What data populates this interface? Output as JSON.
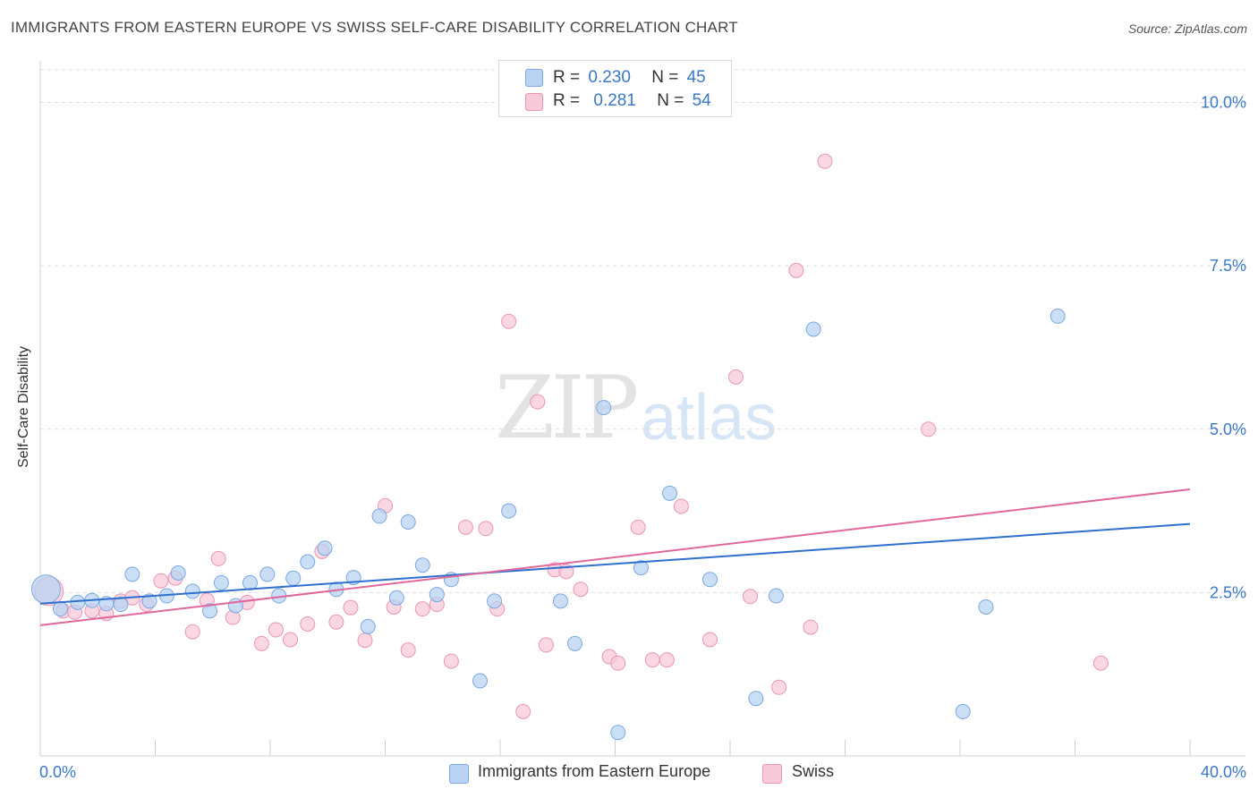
{
  "title": "IMMIGRANTS FROM EASTERN EUROPE VS SWISS SELF-CARE DISABILITY CORRELATION CHART",
  "source": "Source: ZipAtlas.com",
  "watermark": {
    "zip": "ZIP",
    "atlas": "atlas"
  },
  "legend_top": {
    "rows": [
      {
        "r_label": "R =",
        "r_value": "0.230",
        "n_label": "N =",
        "n_value": "45"
      },
      {
        "r_label": "R =",
        "r_value": "0.281",
        "n_label": "N =",
        "n_value": "54"
      }
    ]
  },
  "colors": {
    "blue_fill": "#b8d3f3",
    "blue_stroke": "#7aa8e0",
    "blue_line": "#2f6fcf",
    "pink_fill": "#f8c9d8",
    "pink_stroke": "#e996b3",
    "pink_line": "#e0689a",
    "axis_label": "#3a78c9",
    "grid": "#dedede"
  },
  "chart_data": {
    "type": "scatter",
    "title": "IMMIGRANTS FROM EASTERN EUROPE VS SWISS SELF-CARE DISABILITY CORRELATION CHART",
    "xlabel": "",
    "ylabel": "Self-Care Disability",
    "xlim": [
      0,
      40
    ],
    "ylim": [
      0,
      10.5
    ],
    "x_tick_labels": [
      "0.0%",
      "40.0%"
    ],
    "y_ticks": [
      2.5,
      5.0,
      7.5,
      10.0
    ],
    "y_tick_labels": [
      "2.5%",
      "5.0%",
      "7.5%",
      "10.0%"
    ],
    "grid": true,
    "legend_placement": "bottom-center",
    "series": [
      {
        "name": "Immigrants from Eastern Europe",
        "r": 0.23,
        "n": 45,
        "trend": {
          "x": [
            0,
            40
          ],
          "y": [
            2.33,
            3.55
          ]
        },
        "points": [
          [
            0.2,
            2.55
          ],
          [
            0.7,
            2.25
          ],
          [
            1.3,
            2.35
          ],
          [
            1.8,
            2.38
          ],
          [
            2.3,
            2.33
          ],
          [
            2.8,
            2.32
          ],
          [
            3.2,
            2.78
          ],
          [
            3.8,
            2.37
          ],
          [
            4.4,
            2.45
          ],
          [
            4.8,
            2.8
          ],
          [
            5.3,
            2.52
          ],
          [
            5.9,
            2.22
          ],
          [
            6.3,
            2.65
          ],
          [
            6.8,
            2.3
          ],
          [
            7.3,
            2.65
          ],
          [
            7.9,
            2.78
          ],
          [
            8.3,
            2.45
          ],
          [
            8.8,
            2.72
          ],
          [
            9.3,
            2.97
          ],
          [
            9.9,
            3.18
          ],
          [
            10.3,
            2.55
          ],
          [
            10.9,
            2.73
          ],
          [
            11.4,
            1.98
          ],
          [
            11.8,
            3.67
          ],
          [
            12.4,
            2.42
          ],
          [
            12.8,
            3.58
          ],
          [
            13.3,
            2.92
          ],
          [
            13.8,
            2.47
          ],
          [
            14.3,
            2.7
          ],
          [
            15.3,
            1.15
          ],
          [
            15.8,
            2.37
          ],
          [
            16.3,
            3.75
          ],
          [
            18.1,
            2.37
          ],
          [
            18.6,
            1.72
          ],
          [
            19.6,
            5.33
          ],
          [
            20.1,
            0.36
          ],
          [
            20.9,
            2.88
          ],
          [
            21.9,
            4.02
          ],
          [
            23.3,
            2.7
          ],
          [
            24.9,
            0.88
          ],
          [
            25.6,
            2.45
          ],
          [
            26.9,
            6.53
          ],
          [
            32.1,
            0.68
          ],
          [
            32.9,
            2.28
          ],
          [
            35.4,
            6.73
          ]
        ]
      },
      {
        "name": "Swiss",
        "r": 0.281,
        "n": 54,
        "trend": {
          "x": [
            0,
            40
          ],
          "y": [
            2.0,
            4.08
          ]
        },
        "points": [
          [
            0.3,
            2.52
          ],
          [
            0.8,
            2.22
          ],
          [
            1.2,
            2.2
          ],
          [
            1.8,
            2.22
          ],
          [
            2.3,
            2.18
          ],
          [
            2.8,
            2.37
          ],
          [
            3.2,
            2.42
          ],
          [
            3.7,
            2.32
          ],
          [
            4.2,
            2.68
          ],
          [
            4.7,
            2.72
          ],
          [
            5.3,
            1.9
          ],
          [
            5.8,
            2.38
          ],
          [
            6.2,
            3.02
          ],
          [
            6.7,
            2.12
          ],
          [
            7.2,
            2.35
          ],
          [
            7.7,
            1.72
          ],
          [
            8.2,
            1.93
          ],
          [
            8.7,
            1.78
          ],
          [
            9.3,
            2.02
          ],
          [
            9.8,
            3.13
          ],
          [
            10.3,
            2.05
          ],
          [
            10.8,
            2.27
          ],
          [
            11.3,
            1.77
          ],
          [
            12.0,
            3.83
          ],
          [
            12.3,
            2.28
          ],
          [
            12.8,
            1.62
          ],
          [
            13.3,
            2.25
          ],
          [
            13.8,
            2.32
          ],
          [
            14.3,
            1.45
          ],
          [
            14.8,
            3.5
          ],
          [
            15.5,
            3.48
          ],
          [
            15.9,
            2.25
          ],
          [
            16.3,
            6.65
          ],
          [
            16.8,
            0.68
          ],
          [
            17.3,
            5.42
          ],
          [
            17.6,
            1.7
          ],
          [
            17.9,
            2.85
          ],
          [
            18.3,
            2.82
          ],
          [
            18.8,
            2.55
          ],
          [
            19.8,
            1.52
          ],
          [
            20.1,
            1.42
          ],
          [
            20.8,
            3.5
          ],
          [
            21.3,
            1.47
          ],
          [
            21.8,
            1.47
          ],
          [
            22.3,
            3.82
          ],
          [
            23.3,
            1.78
          ],
          [
            24.2,
            5.8
          ],
          [
            24.7,
            2.44
          ],
          [
            25.7,
            1.05
          ],
          [
            26.3,
            7.43
          ],
          [
            26.8,
            1.97
          ],
          [
            27.3,
            9.1
          ],
          [
            30.9,
            5.0
          ],
          [
            36.9,
            1.42
          ]
        ]
      }
    ]
  }
}
